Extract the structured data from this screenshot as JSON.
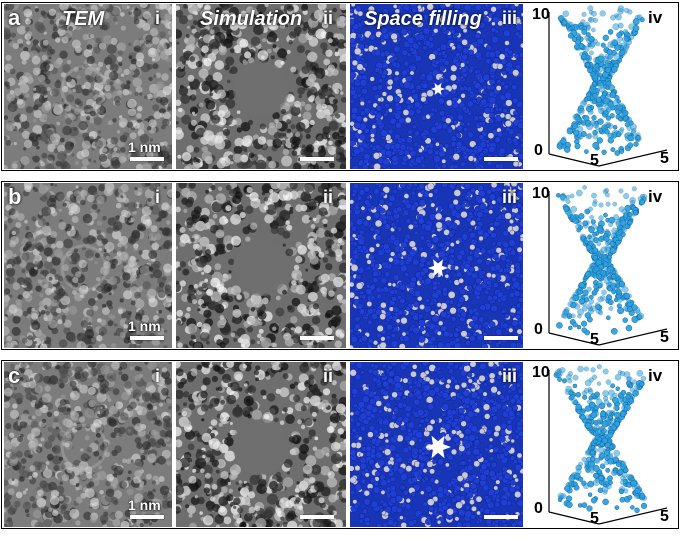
{
  "rows": [
    {
      "letter": "a",
      "tem_title": "TEM",
      "sim_title": "Simulation",
      "space_title": "Space filling",
      "scale_bar": "1 nm",
      "numerals": [
        "i",
        "ii",
        "iii",
        "iv"
      ],
      "axis": {
        "z_top": "10",
        "origin": "0",
        "x_tick": "5",
        "y_tick": "5"
      },
      "hole_size": 7
    },
    {
      "letter": "b",
      "tem_title": "",
      "sim_title": "",
      "space_title": "",
      "scale_bar": "1 nm",
      "numerals": [
        "i",
        "ii",
        "iii",
        "iv"
      ],
      "axis": {
        "z_top": "10",
        "origin": "0",
        "x_tick": "5",
        "y_tick": "5"
      },
      "hole_size": 10
    },
    {
      "letter": "c",
      "tem_title": "",
      "sim_title": "",
      "space_title": "",
      "scale_bar": "1 nm",
      "numerals": [
        "i",
        "ii",
        "iii",
        "iv"
      ],
      "axis": {
        "z_top": "10",
        "origin": "0",
        "x_tick": "5",
        "y_tick": "5"
      },
      "hole_size": 13
    }
  ],
  "colors": {
    "atom_blue": "#1f3fd6",
    "atom_grey": "#c8c8d8",
    "hourglass": "#2ea3e0"
  }
}
